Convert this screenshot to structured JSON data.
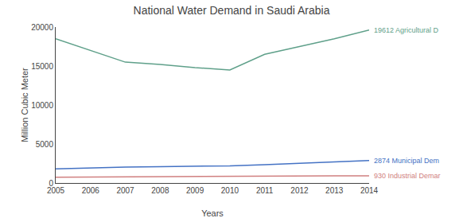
{
  "chart_data": {
    "type": "line",
    "title": "National Water Demand in Saudi Arabia",
    "xlabel": "Years",
    "ylabel": "Million Cubic Meter",
    "x": [
      2005,
      2006,
      2007,
      2008,
      2009,
      2010,
      2011,
      2012,
      2013,
      2014
    ],
    "series": [
      {
        "color": "#5fa08a",
        "values": [
          18500,
          17000,
          15500,
          15200,
          14800,
          14500,
          16500,
          17500,
          18500,
          19612
        ]
      },
      {
        "color": "#4472c4",
        "values": [
          1800,
          1950,
          2050,
          2100,
          2150,
          2200,
          2350,
          2500,
          2700,
          2874
        ]
      },
      {
        "color": "#d08080",
        "values": [
          750,
          780,
          810,
          830,
          850,
          870,
          890,
          900,
          915,
          930
        ]
      }
    ],
    "xlim": [
      2005,
      2014
    ],
    "xticks": [
      2005,
      2006,
      2007,
      2008,
      2009,
      2010,
      2011,
      2012,
      2013,
      2014
    ],
    "ylim": [
      0,
      20000
    ],
    "yticks": [
      0,
      5000,
      10000,
      15000,
      20000
    ],
    "grid": false,
    "annotations": [
      {
        "text": "19612 Agricultural D",
        "x": 2014,
        "y": 19612,
        "color": "#5fa08a"
      },
      {
        "text": "2874 Municipal Dem",
        "x": 2014,
        "y": 2874,
        "color": "#4472c4"
      },
      {
        "text": "930 Industrial Demar",
        "x": 2014,
        "y": 930,
        "color": "#d08080"
      }
    ]
  }
}
